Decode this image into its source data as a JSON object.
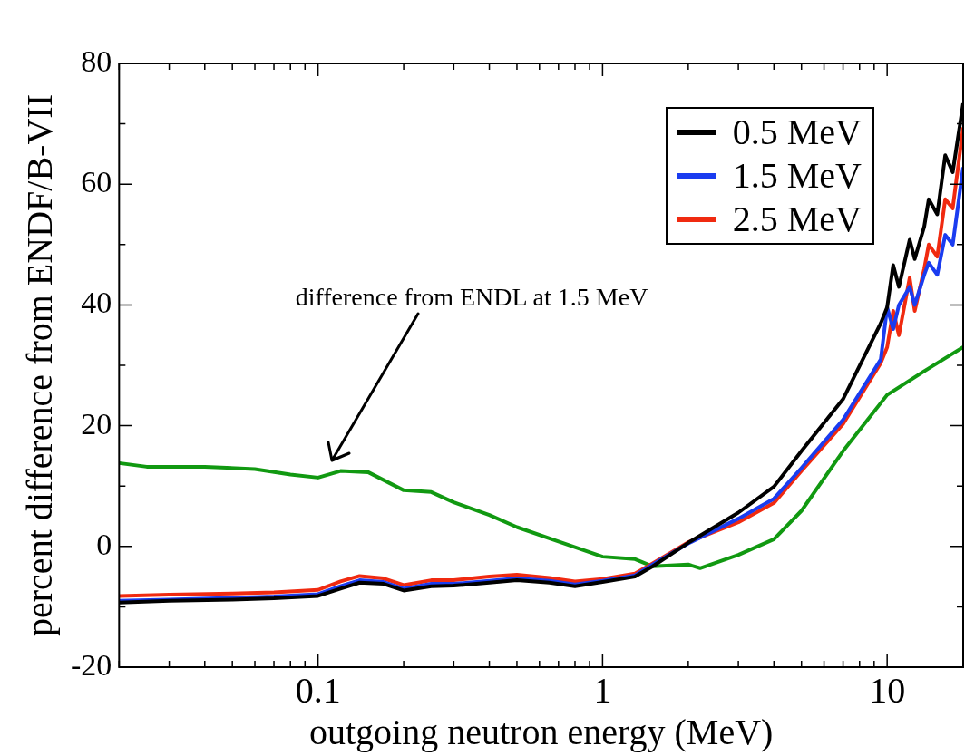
{
  "chart_data": {
    "type": "line",
    "xlabel": "outgoing neutron energy (MeV)",
    "ylabel": "percent difference from ENDF/B-VII",
    "log": "x",
    "grid": false,
    "legend": "top right",
    "xlim": [
      0.02,
      18.5
    ],
    "ylim": [
      -20,
      80
    ],
    "xticks": [
      {
        "value": 0.02,
        "label": null
      },
      {
        "value": 0.03,
        "label": null
      },
      {
        "value": 0.04,
        "label": null
      },
      {
        "value": 0.05,
        "label": null
      },
      {
        "value": 0.06,
        "label": null
      },
      {
        "value": 0.07,
        "label": null
      },
      {
        "value": 0.08,
        "label": null
      },
      {
        "value": 0.09,
        "label": null
      },
      0.1,
      {
        "value": 0.2,
        "label": null
      },
      {
        "value": 0.3,
        "label": null
      },
      {
        "value": 0.4,
        "label": null
      },
      {
        "value": 0.5,
        "label": null
      },
      {
        "value": 0.6,
        "label": null
      },
      {
        "value": 0.7,
        "label": null
      },
      {
        "value": 0.8,
        "label": null
      },
      {
        "value": 0.9,
        "label": null
      },
      1,
      {
        "value": 2,
        "label": null
      },
      {
        "value": 3,
        "label": null
      },
      {
        "value": 4,
        "label": null
      },
      {
        "value": 5,
        "label": null
      },
      {
        "value": 6,
        "label": null
      },
      {
        "value": 7,
        "label": null
      },
      {
        "value": 8,
        "label": null
      },
      {
        "value": 9,
        "label": null
      },
      10
    ],
    "yticks": [
      -20,
      {
        "value": -10,
        "label": null
      },
      0,
      {
        "value": 10,
        "label": null
      },
      20,
      {
        "value": 30,
        "label": null
      },
      40,
      {
        "value": 50,
        "label": null
      },
      60,
      {
        "value": 70,
        "label": null
      },
      80
    ],
    "x": [
      0.02,
      0.03,
      0.05,
      0.07,
      0.1,
      0.12,
      0.14,
      0.17,
      0.2,
      0.25,
      0.3,
      0.4,
      0.5,
      0.65,
      0.8,
      1,
      1.3,
      1.5,
      2,
      3,
      4,
      5,
      7,
      9.5,
      10,
      10.5,
      11,
      12,
      12.5,
      13.5,
      14,
      15,
      16,
      17,
      18.5
    ],
    "series": [
      {
        "name": "0.5 MeV",
        "color": "#000000",
        "values": [
          -9.3,
          -9.0,
          -8.8,
          -8.6,
          -8.2,
          -7.0,
          -6.0,
          -6.2,
          -7.3,
          -6.6,
          -6.5,
          -6.0,
          -5.6,
          -6.0,
          -6.6,
          -5.9,
          -5.0,
          -3.3,
          0.6,
          5.6,
          9.9,
          15.8,
          24.4,
          37,
          39.6,
          46.6,
          43,
          50.8,
          47.6,
          53,
          57.5,
          55,
          64.8,
          62,
          73.4
        ]
      },
      {
        "name": "1.5 MeV",
        "color": "#1a3cf0",
        "values": [
          -9.0,
          -8.8,
          -8.5,
          -8.3,
          -7.9,
          -6.6,
          -5.6,
          -5.9,
          -7.0,
          -6.2,
          -6.2,
          -5.7,
          -5.3,
          -5.7,
          -6.3,
          -5.7,
          -4.8,
          -3.0,
          0.5,
          4.6,
          7.9,
          13,
          21,
          31,
          39.6,
          36,
          40,
          43,
          40,
          45,
          47,
          45,
          51.6,
          50,
          62.8
        ]
      },
      {
        "name": "2.5 MeV",
        "color": "#f02a10",
        "values": [
          -8.2,
          -8.0,
          -7.8,
          -7.6,
          -7.2,
          -5.8,
          -4.9,
          -5.3,
          -6.4,
          -5.6,
          -5.6,
          -5.0,
          -4.7,
          -5.2,
          -5.8,
          -5.4,
          -4.5,
          -2.8,
          0.7,
          4.0,
          7.2,
          12.5,
          20.3,
          30.4,
          33,
          39,
          35,
          44.5,
          39,
          46,
          50,
          48,
          57.5,
          56,
          69.4
        ]
      },
      {
        "color": "#119911",
        "x": [
          0.02,
          0.025,
          0.04,
          0.06,
          0.08,
          0.1,
          0.12,
          0.15,
          0.2,
          0.25,
          0.3,
          0.4,
          0.5,
          0.7,
          1,
          1.3,
          1.5,
          2,
          2.2,
          3,
          4,
          5,
          7,
          10,
          14,
          18.5
        ],
        "values": [
          13.8,
          13.2,
          13.2,
          12.8,
          11.9,
          11.4,
          12.5,
          12.3,
          9.3,
          9.0,
          7.3,
          5.2,
          3.2,
          0.8,
          -1.7,
          -2.1,
          -3.3,
          -3.0,
          -3.6,
          -1.4,
          1.2,
          5.9,
          15.8,
          25.1,
          29.5,
          33
        ]
      }
    ],
    "annotations": [
      "difference from ENDL at 1.5 MeV"
    ]
  }
}
